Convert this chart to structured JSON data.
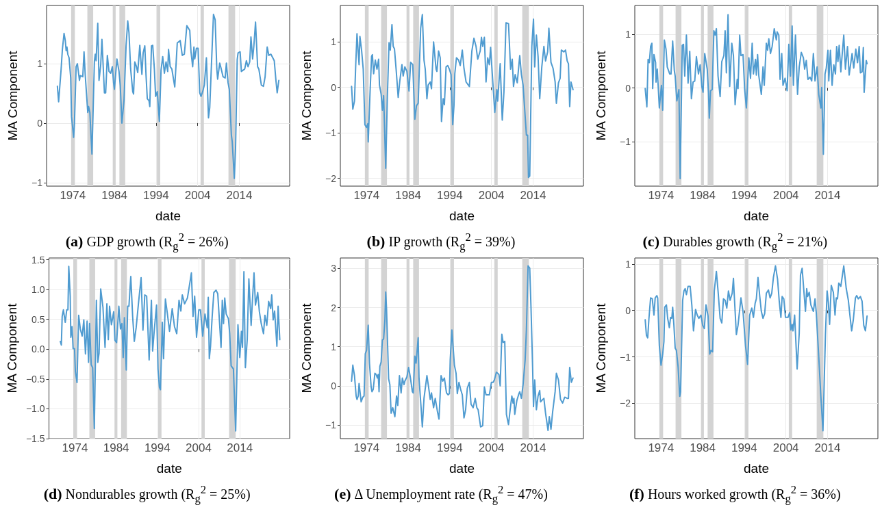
{
  "chart_data": [
    {
      "type": "line",
      "title": "(a) GDP growth (R$_{g}$$^{2}$ = 26%)",
      "xlabel": "date",
      "ylabel": "MA Component",
      "color": "#4f9bd0",
      "grid": true,
      "xlim": [
        1967.7,
        2026.1
      ],
      "xticks": [
        1974,
        1984,
        1994,
        2004,
        2014
      ],
      "ylim": [
        -1.06,
        1.98
      ],
      "yticks": [
        {
          "value": -1,
          "label": "−1"
        },
        0,
        1
      ],
      "bands": [
        {
          "axis": "x",
          "from": 1973.6,
          "to": 1974.5,
          "color": "#d3d3d3"
        },
        {
          "axis": "x",
          "from": 1977.5,
          "to": 1978.9,
          "color": "#d3d3d3"
        },
        {
          "axis": "x",
          "from": 1983.6,
          "to": 1984.3,
          "color": "#d3d3d3"
        },
        {
          "axis": "x",
          "from": 1985.2,
          "to": 1986.6,
          "color": "#d3d3d3"
        },
        {
          "axis": "x",
          "from": 1994.2,
          "to": 1995.0,
          "color": "#d3d3d3"
        },
        {
          "axis": "x",
          "from": 2004.7,
          "to": 2005.5,
          "color": "#d3d3d3"
        },
        {
          "axis": "x",
          "from": 2011.4,
          "to": 2013.0,
          "color": "#d3d3d3"
        }
      ],
      "x": [
        1970.3,
        1970.6,
        1970.7,
        1971.2,
        1971.5,
        1971.9,
        1972.2,
        1972.4,
        1972.6,
        1972.8,
        1973.1,
        1973.5,
        1973.7,
        1974.2,
        1974.4,
        1974.8,
        1975.1,
        1975.6,
        1975.8,
        1976.4,
        1976.7,
        1977.0,
        1977.3,
        1977.6,
        1977.8,
        1978.1,
        1978.6,
        1978.9,
        1979.2,
        1979.4,
        1979.6,
        1980.0,
        1980.3,
        1980.7,
        1981.0,
        1981.6,
        1981.9,
        1982.3,
        1982.7,
        1983.1,
        1983.5,
        1983.8,
        1984.0,
        1984.6,
        1985.1,
        1985.4,
        1985.8,
        1986.3,
        1986.8,
        1987.2,
        1987.5,
        1987.9,
        1988.4,
        1988.6,
        1988.9,
        1989.3,
        1989.6,
        1990.1,
        1990.6,
        1990.9,
        1991.3,
        1991.6,
        1991.9,
        1992.3,
        1992.5,
        1992.9,
        1993.2,
        1993.6,
        1993.9,
        1994.3,
        1994.8,
        1995.2,
        1995.6,
        1996.0,
        1996.4,
        1996.8,
        1997.0,
        1997.4,
        1997.8,
        1998.5,
        1999.1,
        1999.8,
        2000.3,
        2000.8,
        2001.4,
        2002.1,
        2002.4,
        2002.8,
        2003.1,
        2003.3,
        2003.7,
        2004.1,
        2004.5,
        2004.8,
        2005.2,
        2005.6,
        2006.1,
        2006.6,
        2006.9,
        2007.4,
        2007.8,
        2008.2,
        2008.6,
        2008.8,
        2009.3,
        2009.6,
        2010.1,
        2010.6,
        2010.9,
        2011.3,
        2011.6,
        2012.1,
        2012.3,
        2012.8,
        2013.1,
        2013.5,
        2013.7,
        2014.2,
        2014.5,
        2015.3,
        2015.7,
        2016.1,
        2016.5,
        2016.8,
        2017.2,
        2017.5,
        2017.9,
        2018.4,
        2018.7,
        2019.3,
        2019.8,
        2020.2,
        2020.7,
        2021.1,
        2021.6,
        2021.9,
        2022.4,
        2022.8,
        2023.1,
        2023.5
      ],
      "values": [
        0.62,
        0.36,
        0.36,
        0.91,
        1.24,
        1.51,
        1.39,
        1.22,
        1.28,
        1.16,
        1.1,
        0.76,
        0.11,
        -0.24,
        0.0,
        0.95,
        1.0,
        0.72,
        0.8,
        0.78,
        1.2,
        0.8,
        0.49,
        0.18,
        0.28,
        0.18,
        -0.52,
        0.26,
        1.05,
        1.16,
        1.05,
        1.68,
        0.72,
        0.97,
        1.41,
        0.51,
        0.51,
        1.14,
        0.87,
        0.84,
        0.95,
        0.68,
        0.57,
        1.08,
        0.87,
        0.64,
        0.0,
        0.38,
        1.3,
        1.72,
        1.52,
        0.91,
        0.53,
        0.49,
        1.03,
        0.95,
        0.85,
        1.31,
        0.82,
        1.18,
        1.3,
        0.8,
        0.41,
        0.38,
        0.28,
        1.3,
        1.31,
        0.91,
        0.45,
        0.53,
        0.03,
        0.89,
        1.12,
        0.84,
        1.03,
        0.87,
        1.24,
        0.95,
        0.91,
        0.61,
        1.35,
        1.39,
        1.14,
        1.16,
        1.64,
        1.56,
        1.2,
        0.95,
        1.28,
        1.08,
        1.26,
        1.26,
        0.51,
        0.45,
        0.53,
        0.64,
        1.1,
        0.09,
        0.26,
        1.14,
        1.83,
        1.74,
        0.91,
        0.74,
        1.01,
        0.93,
        0.78,
        0.76,
        1.01,
        0.68,
        0.57,
        -0.2,
        -0.31,
        -0.93,
        -0.43,
        1.07,
        1.18,
        1.2,
        0.87,
        0.91,
        1.05,
        0.95,
        1.03,
        1.45,
        1.08,
        1.3,
        1.7,
        0.95,
        0.91,
        0.64,
        0.62,
        0.78,
        1.28,
        1.14,
        1.16,
        1.12,
        1.05,
        0.72,
        0.51,
        0.72
      ]
    },
    {
      "type": "line",
      "title": "(b) IP growth (R$_{g}$$^{2}$ = 39%)",
      "xlabel": "date",
      "ylabel": "MA Component",
      "color": "#4f9bd0",
      "grid": true,
      "xlim": [
        1967.7,
        2026.1
      ],
      "xticks": [
        1974,
        1984,
        1994,
        2004,
        2014
      ],
      "ylim": [
        -2.17,
        1.8
      ],
      "yticks": [
        {
          "value": -2,
          "label": "−2"
        },
        {
          "value": -1,
          "label": "−1"
        },
        0,
        1
      ],
      "bands": [
        {
          "axis": "x",
          "from": 1973.6,
          "to": 1974.5,
          "color": "#d3d3d3"
        },
        {
          "axis": "x",
          "from": 1977.5,
          "to": 1978.9,
          "color": "#d3d3d3"
        },
        {
          "axis": "x",
          "from": 1983.6,
          "to": 1984.3,
          "color": "#d3d3d3"
        },
        {
          "axis": "x",
          "from": 1985.2,
          "to": 1986.6,
          "color": "#d3d3d3"
        },
        {
          "axis": "x",
          "from": 1994.2,
          "to": 1995.0,
          "color": "#d3d3d3"
        },
        {
          "axis": "x",
          "from": 2004.7,
          "to": 2005.5,
          "color": "#d3d3d3"
        },
        {
          "axis": "x",
          "from": 2011.4,
          "to": 2013.0,
          "color": "#d3d3d3"
        }
      ],
      "x": [
        1970.4,
        1970.7,
        1971.1,
        1971.4,
        1971.7,
        1972.2,
        1972.4,
        1972.8,
        1973.2,
        1973.6,
        1974.0,
        1974.3,
        1974.4,
        1974.8,
        1975.2,
        1975.4,
        1975.7,
        1976.1,
        1976.5,
        1976.9,
        1977.1,
        1977.5,
        1977.8,
        1978.1,
        1978.6,
        1979.0,
        1979.4,
        1979.7,
        1980.1,
        1980.4,
        1980.7,
        1981.1,
        1981.6,
        1982.0,
        1982.5,
        1982.8,
        1983.2,
        1983.7,
        1984.2,
        1984.6,
        1985.1,
        1985.6,
        1986.0,
        1986.4,
        1986.6,
        1987.0,
        1987.4,
        1987.8,
        1988.1,
        1988.5,
        1988.8,
        1989.3,
        1989.6,
        1990.1,
        1990.7,
        1990.9,
        1991.3,
        1991.7,
        1992.0,
        1992.4,
        1992.7,
        1993.1,
        1993.5,
        1993.9,
        1994.3,
        1994.7,
        1995.0,
        1995.2,
        1995.6,
        1996.1,
        1996.5,
        1997.0,
        1997.4,
        1997.9,
        1998.7,
        1999.3,
        1999.8,
        2000.3,
        2000.7,
        2001.3,
        2001.6,
        2001.9,
        2002.3,
        2002.7,
        2003.1,
        2003.5,
        2003.8,
        2004.2,
        2004.8,
        2005.3,
        2005.5,
        2006.1,
        2006.6,
        2007.0,
        2007.5,
        2008.1,
        2008.6,
        2009.0,
        2009.3,
        2009.7,
        2010.2,
        2010.8,
        2011.2,
        2011.6,
        2012.4,
        2012.7,
        2012.9,
        2013.2,
        2013.7,
        2014.1,
        2014.4,
        2014.8,
        2015.2,
        2015.6,
        2016.1,
        2016.6,
        2017.0,
        2017.5,
        2017.8,
        2018.3,
        2018.8,
        2019.3,
        2019.6,
        2020.1,
        2020.5,
        2020.8,
        2021.4,
        2021.8,
        2022.2,
        2022.5,
        2022.8,
        2023.1,
        2023.6
      ],
      "values": [
        0.02,
        -0.48,
        -0.3,
        0.5,
        1.18,
        0.5,
        1.12,
        0.82,
        0.4,
        -0.82,
        -0.88,
        -0.8,
        -1.2,
        -0.2,
        0.68,
        0.72,
        0.3,
        0.6,
        0.4,
        0.62,
        0.05,
        -0.15,
        -0.5,
        -0.18,
        -1.78,
        -0.2,
        0.98,
        0.82,
        1.38,
        0.9,
        0.85,
        0.4,
        -0.22,
        0.15,
        0.5,
        0.25,
        0.45,
        0.35,
        -0.08,
        0.55,
        0.5,
        -0.7,
        -0.4,
        -0.35,
        0.2,
        1.3,
        1.6,
        0.6,
        0.4,
        -0.25,
        0.05,
        0.12,
        -0.03,
        1.0,
        0.4,
        0.35,
        0.8,
        0.65,
        -0.75,
        -0.25,
        -0.38,
        0.45,
        0.48,
        0.4,
        0.28,
        -0.82,
        -0.4,
        0.3,
        0.65,
        0.6,
        0.48,
        0.82,
        0.42,
        0.12,
        0.02,
        0.8,
        1.08,
        0.9,
        0.62,
        0.8,
        1.1,
        0.9,
        1.1,
        0.12,
        0.65,
        0.5,
        0.88,
        0.3,
        -0.55,
        -0.05,
        -0.3,
        0.52,
        -0.72,
        -0.1,
        1.42,
        1.4,
        0.4,
        0.62,
        0.02,
        0.28,
        0.1,
        0.7,
        0.28,
        0.05,
        -1.05,
        -1.05,
        -1.98,
        -1.95,
        0.9,
        1.5,
        0.45,
        1.15,
        0.68,
        -0.25,
        0.45,
        0.9,
        0.58,
        0.78,
        1.3,
        0.55,
        0.42,
        0.12,
        -0.35,
        0.1,
        0.2,
        0.82,
        0.78,
        0.82,
        0.58,
        0.52,
        -0.42,
        0.12,
        -0.05
      ]
    },
    {
      "type": "line",
      "title": "(c) Durables growth (R$_{g}$$^{2}$ = 21%)",
      "xlabel": "date",
      "ylabel": "MA Component",
      "color": "#4f9bd0",
      "grid": true,
      "xlim": [
        1967.7,
        2026.1
      ],
      "xticks": [
        1974,
        1984,
        1994,
        2004,
        2014
      ],
      "ylim": [
        -1.82,
        1.53
      ],
      "yticks": [
        {
          "value": -1,
          "label": "−1"
        },
        0,
        1
      ],
      "bands": [
        {
          "axis": "x",
          "from": 1973.6,
          "to": 1974.5,
          "color": "#d3d3d3"
        },
        {
          "axis": "x",
          "from": 1977.5,
          "to": 1978.9,
          "color": "#d3d3d3"
        },
        {
          "axis": "x",
          "from": 1983.6,
          "to": 1984.3,
          "color": "#d3d3d3"
        },
        {
          "axis": "x",
          "from": 1985.2,
          "to": 1986.6,
          "color": "#d3d3d3"
        },
        {
          "axis": "x",
          "from": 1994.2,
          "to": 1995.0,
          "color": "#d3d3d3"
        },
        {
          "axis": "x",
          "from": 2004.7,
          "to": 2005.5,
          "color": "#d3d3d3"
        },
        {
          "axis": "x",
          "from": 2011.4,
          "to": 2013.0,
          "color": "#d3d3d3"
        }
      ],
      "x": [
        1970.2,
        1970.6,
        1970.9,
        1971.2,
        1971.5,
        1971.8,
        1972.0,
        1972.3,
        1972.7,
        1972.8,
        1973.1,
        1973.6,
        1974.1,
        1974.4,
        1974.8,
        1975.2,
        1975.5,
        1976.1,
        1976.4,
        1976.8,
        1977.2,
        1977.4,
        1977.8,
        1978.3,
        1978.6,
        1979.1,
        1979.4,
        1979.7,
        1980.1,
        1980.5,
        1980.9,
        1981.3,
        1981.7,
        1982.1,
        1982.5,
        1983.0,
        1983.4,
        1983.8,
        1984.1,
        1984.5,
        1985.1,
        1985.4,
        1985.6,
        1985.9,
        1986.3,
        1986.7,
        1987.0,
        1987.3,
        1987.7,
        1988.2,
        1988.6,
        1989.1,
        1989.4,
        1989.7,
        1990.1,
        1990.5,
        1991.0,
        1991.4,
        1991.8,
        1992.3,
        1992.5,
        1992.9,
        1993.2,
        1993.7,
        1994.1,
        1994.5,
        1995.1,
        1995.5,
        1995.9,
        1996.2,
        1996.7,
        1996.9,
        1997.2,
        1997.5,
        1998.1,
        1998.5,
        1998.8,
        1999.3,
        1999.6,
        1999.9,
        2000.3,
        2000.7,
        2001.2,
        2001.7,
        2001.9,
        2002.3,
        2002.6,
        2003.0,
        2003.3,
        2003.8,
        2004.3,
        2004.7,
        2005.1,
        2005.5,
        2005.8,
        2006.3,
        2006.8,
        2007.2,
        2007.7,
        2008.2,
        2008.5,
        2008.9,
        2009.3,
        2009.8,
        2010.2,
        2010.6,
        2011.0,
        2011.5,
        2011.9,
        2012.4,
        2012.6,
        2013.0,
        2013.4,
        2013.7,
        2014.1,
        2014.3,
        2014.7,
        2015.1,
        2015.5,
        2015.9,
        2016.2,
        2016.5,
        2016.8,
        2017.2,
        2017.5,
        2017.9,
        2018.3,
        2018.8,
        2019.2,
        2019.9,
        2020.3,
        2020.8,
        2021.2,
        2021.6,
        2021.9,
        2022.3,
        2022.6,
        2022.8,
        2023.3,
        2023.5
      ],
      "values": [
        -0.01,
        -0.35,
        0.53,
        0.47,
        0.77,
        0.83,
        -0.01,
        0.62,
        0.47,
        0.11,
        0.35,
        -0.37,
        0.05,
        -0.41,
        0.89,
        0.72,
        0.39,
        0.26,
        0.26,
        0.87,
        0.32,
        0.22,
        -0.24,
        -0.03,
        -1.68,
        0.79,
        0.81,
        0.22,
        0.98,
        0.09,
        0.68,
        -0.2,
        0.11,
        0.13,
        0.58,
        0.26,
        0.43,
        0.03,
        -0.08,
        0.64,
        0.35,
        -0.08,
        -0.56,
        -0.05,
        -0.03,
        1.06,
        0.98,
        1.1,
        0.22,
        -0.16,
        0.49,
        0.6,
        1.06,
        0.28,
        1.36,
        0.03,
        0.83,
        0.6,
        -0.31,
        0.16,
        -0.01,
        0.98,
        0.6,
        0.62,
        -0.03,
        -0.37,
        0.56,
        0.18,
        0.83,
        0.26,
        0.53,
        0.24,
        0.62,
        0.22,
        -0.12,
        0.39,
        0.05,
        0.83,
        0.7,
        0.91,
        0.64,
        0.77,
        1.1,
        0.89,
        1.04,
        0.98,
        0.16,
        0.64,
        0.05,
        0.18,
        -0.05,
        0.81,
        0.22,
        1.15,
        0.05,
        0.98,
        -0.12,
        0.39,
        0.66,
        0.56,
        0.35,
        0.51,
        0.16,
        0.2,
        0.13,
        0.64,
        0.13,
        0.39,
        -0.12,
        -0.37,
        0.01,
        -1.23,
        0.26,
        0.37,
        0.7,
        0.13,
        0.7,
        0.05,
        0.43,
        0.26,
        0.77,
        0.49,
        0.79,
        0.3,
        0.6,
        0.98,
        0.35,
        0.77,
        0.24,
        0.64,
        0.37,
        0.72,
        0.47,
        0.77,
        0.28,
        0.3,
        0.75,
        -0.08,
        0.51,
        0.45
      ]
    },
    {
      "type": "line",
      "title": "(d) Nondurables growth (R$_{g}$$^{2}$ = 25%)",
      "xlabel": "date",
      "ylabel": "MA Component",
      "color": "#4f9bd0",
      "grid": true,
      "xlim": [
        1967.7,
        2026.1
      ],
      "xticks": [
        1974,
        1984,
        1994,
        2004,
        2014
      ],
      "ylim": [
        -1.5,
        1.53
      ],
      "yticks": [
        {
          "value": -1.5,
          "label": "−1.5"
        },
        {
          "value": -1,
          "label": "−1.0"
        },
        {
          "value": -0.5,
          "label": "−0.5"
        },
        {
          "value": 0,
          "label": "0.0"
        },
        0.5,
        {
          "value": 1,
          "label": "1.0"
        },
        1.5
      ],
      "bands": [
        {
          "axis": "x",
          "from": 1973.6,
          "to": 1974.5,
          "color": "#d3d3d3"
        },
        {
          "axis": "x",
          "from": 1977.5,
          "to": 1978.9,
          "color": "#d3d3d3"
        },
        {
          "axis": "x",
          "from": 1983.6,
          "to": 1984.3,
          "color": "#d3d3d3"
        },
        {
          "axis": "x",
          "from": 1985.2,
          "to": 1986.6,
          "color": "#d3d3d3"
        },
        {
          "axis": "x",
          "from": 1994.2,
          "to": 1995.0,
          "color": "#d3d3d3"
        },
        {
          "axis": "x",
          "from": 2004.7,
          "to": 2005.5,
          "color": "#d3d3d3"
        },
        {
          "axis": "x",
          "from": 2011.4,
          "to": 2013.0,
          "color": "#d3d3d3"
        }
      ],
      "x": [
        1970.45,
        1970.7,
        1970.9,
        1971.2,
        1971.65,
        1972.0,
        1972.3,
        1972.5,
        1972.85,
        1973.0,
        1973.3,
        1973.55,
        1973.9,
        1974.1,
        1974.5,
        1974.9,
        1975.3,
        1975.75,
        1976.15,
        1976.55,
        1976.95,
        1977.3,
        1977.55,
        1977.95,
        1978.3,
        1978.7,
        1979.2,
        1979.55,
        1979.85,
        1980.25,
        1980.8,
        1981.3,
        1981.75,
        1982.1,
        1982.4,
        1982.85,
        1983.4,
        1983.7,
        1984.1,
        1984.65,
        1985.05,
        1985.4,
        1985.7,
        1986.0,
        1986.45,
        1986.8,
        1987.1,
        1987.55,
        1988.0,
        1988.4,
        1988.85,
        1989.4,
        1990.05,
        1990.5,
        1990.95,
        1991.4,
        1992.0,
        1992.55,
        1992.85,
        1993.25,
        1993.8,
        1994.15,
        1994.5,
        1994.75,
        1995.2,
        1995.5,
        1995.95,
        1996.4,
        1996.95,
        1997.6,
        1998.15,
        1998.7,
        1999.25,
        1999.7,
        2000.05,
        2000.6,
        2001.3,
        2001.85,
        2002.25,
        2002.65,
        2003.05,
        2003.5,
        2004.05,
        2004.45,
        2005.0,
        2005.55,
        2006.1,
        2006.35,
        2006.6,
        2006.9,
        2007.3,
        2007.7,
        2008.25,
        2008.65,
        2009.1,
        2009.45,
        2009.75,
        2010.05,
        2010.35,
        2010.7,
        2011.25,
        2011.55,
        2011.9,
        2012.45,
        2013.0,
        2013.55,
        2014.0,
        2014.4,
        2014.65,
        2015.0,
        2015.35,
        2015.8,
        2016.2,
        2016.75,
        2017.1,
        2017.45,
        2017.8,
        2018.35,
        2018.75,
        2019.2,
        2019.75,
        2020.1,
        2020.55,
        2021.0,
        2021.5,
        2021.75,
        2022.1,
        2022.45,
        2023.0,
        2023.3,
        2023.7
      ],
      "values": [
        0.13,
        0.07,
        0.55,
        0.66,
        0.45,
        0.66,
        0.66,
        1.39,
        0.89,
        0.2,
        0.38,
        0.01,
        0.01,
        -0.37,
        -0.56,
        0.57,
        0.34,
        0.22,
        0.49,
        -0.08,
        0.47,
        -0.22,
        0.43,
        -0.26,
        -0.31,
        -1.33,
        0.82,
        -0.22,
        -0.07,
        1.01,
        0.7,
        0.03,
        0.76,
        0.16,
        0.72,
        0.41,
        0.63,
        0.15,
        0.11,
        0.72,
        0.34,
        0.43,
        -0.14,
        0.53,
        -0.35,
        0.72,
        0.72,
        1.22,
        0.55,
        0.13,
        0.36,
        0.76,
        1.2,
        0.32,
        0.91,
        0.89,
        -0.18,
        0.82,
        -0.03,
        0.32,
        0.74,
        -0.33,
        -0.64,
        -0.68,
        0.45,
        -0.16,
        0.84,
        0.61,
        0.3,
        0.68,
        0.38,
        0.26,
        0.82,
        0.64,
        0.91,
        0.76,
        0.86,
        1.1,
        1.28,
        0.55,
        0.89,
        0.2,
        0.66,
        0.66,
        0.22,
        0.59,
        0.36,
        0.87,
        -0.16,
        0.05,
        0.55,
        0.95,
        0.99,
        0.93,
        0.43,
        0.03,
        0.82,
        0.43,
        0.86,
        0.59,
        0.51,
        0.26,
        -0.28,
        -0.33,
        -1.37,
        0.41,
        -0.14,
        0.3,
        0.03,
        1.3,
        -0.31,
        0.16,
        1.18,
        0.4,
        0.86,
        1.28,
        0.74,
        0.95,
        0.63,
        0.43,
        0.26,
        0.57,
        0.4,
        0.8,
        0.68,
        0.91,
        0.49,
        0.64,
        0.05,
        0.72,
        0.16
      ]
    },
    {
      "type": "line",
      "title": "(e) Δ Unemployment rate (R$_{g}$$^{2}$ = 47%)",
      "xlabel": "date",
      "ylabel": "MA Component",
      "color": "#4f9bd0",
      "grid": true,
      "xlim": [
        1967.7,
        2026.1
      ],
      "xticks": [
        1974,
        1984,
        1994,
        2004,
        2014
      ],
      "ylim": [
        -1.35,
        3.27
      ],
      "yticks": [
        {
          "value": -1,
          "label": "−1"
        },
        0,
        1,
        2,
        3
      ],
      "bands": [
        {
          "axis": "x",
          "from": 1973.6,
          "to": 1974.5,
          "color": "#d3d3d3"
        },
        {
          "axis": "x",
          "from": 1977.5,
          "to": 1978.9,
          "color": "#d3d3d3"
        },
        {
          "axis": "x",
          "from": 1983.6,
          "to": 1984.3,
          "color": "#d3d3d3"
        },
        {
          "axis": "x",
          "from": 1985.2,
          "to": 1986.6,
          "color": "#d3d3d3"
        },
        {
          "axis": "x",
          "from": 1994.2,
          "to": 1995.0,
          "color": "#d3d3d3"
        },
        {
          "axis": "x",
          "from": 2004.7,
          "to": 2005.5,
          "color": "#d3d3d3"
        },
        {
          "axis": "x",
          "from": 2011.4,
          "to": 2013.0,
          "color": "#d3d3d3"
        }
      ],
      "x": [
        1970.4,
        1970.7,
        1971.1,
        1971.5,
        1971.7,
        1972.0,
        1972.2,
        1972.7,
        1973.1,
        1973.4,
        1973.7,
        1974.0,
        1974.4,
        1974.7,
        1975.1,
        1975.3,
        1975.6,
        1976.0,
        1976.3,
        1976.6,
        1976.8,
        1977.0,
        1977.2,
        1977.5,
        1977.8,
        1978.1,
        1978.4,
        1978.6,
        1978.8,
        1979.3,
        1979.6,
        1979.9,
        1980.3,
        1980.8,
        1981.2,
        1981.5,
        1981.9,
        1982.3,
        1982.6,
        1983.0,
        1983.2,
        1983.7,
        1984.1,
        1984.5,
        1985.0,
        1985.2,
        1985.6,
        1985.9,
        1986.4,
        1986.6,
        1987.1,
        1987.4,
        1987.8,
        1988.5,
        1988.9,
        1989.3,
        1989.6,
        1990.1,
        1990.5,
        1991.0,
        1991.4,
        1991.9,
        1992.3,
        1992.7,
        1993.2,
        1993.6,
        1993.9,
        1994.1,
        1994.5,
        1995.1,
        1995.5,
        1995.8,
        1996.2,
        1996.6,
        1997.0,
        1997.4,
        1997.8,
        1998.2,
        1998.7,
        1999.1,
        1999.6,
        2000.1,
        2000.5,
        2000.8,
        2001.4,
        2001.9,
        2002.3,
        2002.7,
        2003.5,
        2004.0,
        2004.4,
        2004.7,
        2005.2,
        2005.8,
        2006.1,
        2006.5,
        2006.8,
        2007.2,
        2007.6,
        2008.1,
        2008.5,
        2008.9,
        2009.2,
        2009.4,
        2009.6,
        2010.1,
        2010.6,
        2010.8,
        2011.2,
        2011.6,
        2012.1,
        2012.4,
        2012.8,
        2013.2,
        2013.5,
        2013.9,
        2014.1,
        2014.4,
        2014.8,
        2015.2,
        2015.6,
        2015.8,
        2016.3,
        2016.6,
        2017.0,
        2017.6,
        2017.9,
        2018.3,
        2018.7,
        2019.3,
        2019.6,
        2020.1,
        2020.6,
        2021.1,
        2021.6,
        2022.2,
        2022.5,
        2022.8,
        2023.2,
        2023.6
      ],
      "values": [
        0.12,
        0.53,
        0.26,
        -0.26,
        -0.35,
        -0.26,
        0.06,
        -0.41,
        -0.29,
        -0.26,
        0.82,
        0.91,
        1.55,
        0.58,
        -0.03,
        -0.15,
        -0.09,
        0.32,
        0.29,
        0.2,
        0.29,
        -0.15,
        0.5,
        0.61,
        1.17,
        1.2,
        1.67,
        2.4,
        1.96,
        0.18,
        0.03,
        -0.7,
        -0.56,
        -0.79,
        -0.26,
        -0.5,
        0.26,
        -0.18,
        0.2,
        0.03,
        0.12,
        0.23,
        0.47,
        0.23,
        -0.15,
        -0.18,
        0.76,
        0.58,
        1.23,
        0.2,
        -0.56,
        -1.05,
        -0.32,
        0.26,
        -0.03,
        -0.35,
        -0.18,
        -0.56,
        -0.32,
        -0.64,
        -0.85,
        0.26,
        0.12,
        0.2,
        -0.18,
        -0.23,
        -0.2,
        0.67,
        1.43,
        0.53,
        0.32,
        -0.2,
        0.09,
        -0.09,
        -0.23,
        -0.82,
        -0.61,
        -0.06,
        0.09,
        -0.47,
        -0.56,
        -0.32,
        -0.56,
        -0.61,
        -1.05,
        -1.02,
        -0.03,
        -0.23,
        -0.23,
        0.09,
        0.09,
        0.15,
        0.35,
        0.29,
        0.0,
        1.32,
        1.11,
        1.14,
        -0.73,
        -0.99,
        -0.61,
        -0.26,
        -0.44,
        -0.32,
        -0.73,
        -0.38,
        -0.2,
        -0.15,
        -0.32,
        0.03,
        0.67,
        1.43,
        3.07,
        3.01,
        2.02,
        0.44,
        -0.53,
        0.15,
        -0.61,
        -0.26,
        -0.12,
        -0.41,
        -0.35,
        -0.32,
        -0.7,
        -1.14,
        -0.79,
        -1.11,
        -0.67,
        -0.15,
        0.32,
        0.15,
        -0.35,
        -0.44,
        -0.29,
        -0.32,
        -0.32,
        0.47,
        0.09,
        0.2
      ]
    },
    {
      "type": "line",
      "title": "(f) Hours worked growth (R$_{g}$$^{2}$ = 36%)",
      "xlabel": "date",
      "ylabel": "MA Component",
      "color": "#4f9bd0",
      "grid": true,
      "xlim": [
        1967.7,
        2026.1
      ],
      "xticks": [
        1974,
        1984,
        1994,
        2004,
        2014
      ],
      "ylim": [
        -2.76,
        1.13
      ],
      "yticks": [
        {
          "value": -2,
          "label": "−2"
        },
        {
          "value": -1,
          "label": "−1"
        },
        0,
        1
      ],
      "bands": [
        {
          "axis": "x",
          "from": 1973.6,
          "to": 1974.5,
          "color": "#d3d3d3"
        },
        {
          "axis": "x",
          "from": 1977.5,
          "to": 1978.9,
          "color": "#d3d3d3"
        },
        {
          "axis": "x",
          "from": 1983.6,
          "to": 1984.3,
          "color": "#d3d3d3"
        },
        {
          "axis": "x",
          "from": 1985.2,
          "to": 1986.6,
          "color": "#d3d3d3"
        },
        {
          "axis": "x",
          "from": 1994.2,
          "to": 1995.0,
          "color": "#d3d3d3"
        },
        {
          "axis": "x",
          "from": 2004.7,
          "to": 2005.5,
          "color": "#d3d3d3"
        },
        {
          "axis": "x",
          "from": 2011.4,
          "to": 2013.0,
          "color": "#d3d3d3"
        }
      ],
      "x": [
        1970.2,
        1970.5,
        1970.8,
        1971.1,
        1971.5,
        1971.9,
        1972.3,
        1972.6,
        1973.0,
        1973.2,
        1973.6,
        1974.0,
        1974.4,
        1974.7,
        1974.9,
        1975.3,
        1975.6,
        1976.0,
        1976.3,
        1976.6,
        1976.8,
        1977.1,
        1977.4,
        1977.7,
        1978.1,
        1978.5,
        1978.7,
        1979.2,
        1979.5,
        1979.8,
        1980.1,
        1980.5,
        1981.0,
        1981.4,
        1981.8,
        1982.3,
        1982.7,
        1983.1,
        1983.6,
        1984.0,
        1984.4,
        1984.8,
        1985.3,
        1985.7,
        1986.0,
        1986.4,
        1986.8,
        1987.3,
        1987.7,
        1988.2,
        1988.6,
        1989.0,
        1989.4,
        1989.8,
        1990.2,
        1990.6,
        1991.1,
        1991.4,
        1991.6,
        1992.1,
        1992.5,
        1993.2,
        1993.7,
        1994.3,
        1994.8,
        1995.3,
        1995.8,
        1996.2,
        1996.6,
        1996.9,
        1997.3,
        1997.7,
        1998.1,
        1998.5,
        1998.9,
        1999.3,
        1999.8,
        2000.2,
        2000.6,
        2001.0,
        2001.5,
        2002.0,
        2002.4,
        2002.8,
        2003.1,
        2003.5,
        2003.9,
        2004.5,
        2004.9,
        2005.2,
        2005.5,
        2005.7,
        2006.1,
        2006.7,
        2007.2,
        2007.5,
        2007.9,
        2008.3,
        2008.7,
        2009.0,
        2009.2,
        2009.6,
        2010.0,
        2010.6,
        2011.0,
        2011.3,
        2011.9,
        2012.4,
        2012.9,
        2013.5,
        2013.9,
        2014.2,
        2014.5,
        2014.9,
        2015.4,
        2015.8,
        2016.1,
        2016.4,
        2016.7,
        2017.2,
        2017.5,
        2017.9,
        2018.5,
        2019.0,
        2019.4,
        2019.8,
        2020.2,
        2020.7,
        2021.0,
        2021.4,
        2021.9,
        2022.3,
        2022.7,
        2023.1,
        2023.5
      ],
      "values": [
        -0.2,
        -0.54,
        -0.59,
        -0.17,
        0.27,
        0.25,
        -0.1,
        0.27,
        0.32,
        0.27,
        -0.76,
        -1.18,
        -0.94,
        -0.67,
        0.07,
        0.12,
        -0.17,
        -0.37,
        -0.15,
        -0.17,
        0.07,
        -0.32,
        -0.81,
        -0.86,
        -1.21,
        -1.85,
        -1.75,
        0.22,
        0.42,
        0.47,
        0.34,
        0.52,
        0.52,
        0.12,
        -0.44,
        0.02,
        -0.1,
        -0.17,
        -0.1,
        -0.32,
        -0.39,
        0.12,
        -0.12,
        -0.94,
        -0.86,
        -0.89,
        0.42,
        0.84,
        0.42,
        -0.17,
        -0.27,
        0.25,
        0.22,
        0.05,
        0.42,
        0.22,
        0.37,
        0.69,
        0.32,
        -0.52,
        -0.32,
        0.27,
        -0.02,
        -0.76,
        -1.16,
        -0.1,
        0.05,
        -0.15,
        0.15,
        0.25,
        0.71,
        0.32,
        -0.02,
        -0.17,
        -0.07,
        0.37,
        0.44,
        0.27,
        0.37,
        0.71,
        0.96,
        0.67,
        0.2,
        -0.15,
        0.3,
        0.25,
        -0.15,
        -0.15,
        -0.05,
        -0.42,
        -0.3,
        -0.44,
        -0.1,
        -1.26,
        -0.49,
        0.76,
        0.91,
        0.44,
        -0.02,
        0.47,
        0.3,
        0.39,
        0.12,
        -0.02,
        0.25,
        -0.05,
        -1.01,
        -1.85,
        -2.59,
        -0.52,
        0.42,
        0.17,
        -0.3,
        0.54,
        0.39,
        -0.1,
        0.27,
        0.25,
        0.59,
        0.52,
        0.71,
        0.96,
        0.47,
        0.22,
        -0.12,
        -0.44,
        -0.2,
        0.27,
        0.32,
        0.25,
        0.3,
        0.2,
        -0.32,
        -0.44,
        -0.12
      ]
    }
  ]
}
